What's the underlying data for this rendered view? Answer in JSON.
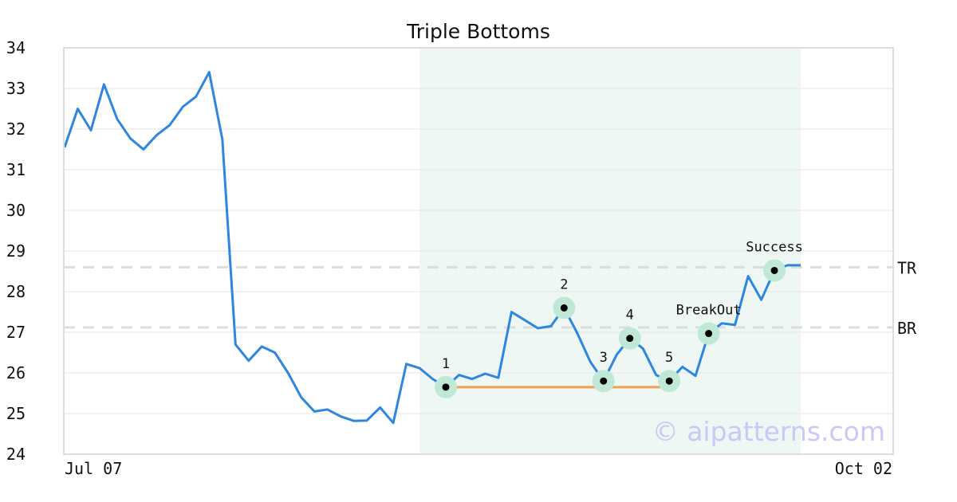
{
  "chart_data": {
    "type": "line",
    "title": "Triple Bottoms",
    "xlabel": "",
    "ylabel": "",
    "ylim": [
      24,
      34
    ],
    "yticks": [
      24,
      25,
      26,
      27,
      28,
      29,
      30,
      31,
      32,
      33,
      34
    ],
    "x_tick_labels": [
      "Jul 07",
      "Oct 02"
    ],
    "grid": true,
    "series": [
      {
        "values": [
          31.55,
          32.5,
          31.97,
          33.1,
          32.25,
          31.77,
          31.5,
          31.85,
          32.1,
          32.55,
          32.8,
          33.4,
          31.75,
          26.7,
          26.3,
          26.65,
          26.5,
          26.0,
          25.4,
          25.05,
          25.1,
          24.93,
          24.82,
          24.83,
          25.15,
          24.77,
          26.22,
          26.12,
          25.85,
          25.65,
          25.95,
          25.85,
          25.98,
          25.88,
          27.5,
          27.3,
          27.1,
          27.15,
          27.6,
          26.98,
          26.27,
          25.8,
          26.45,
          26.85,
          26.6,
          25.95,
          25.8,
          26.15,
          25.93,
          26.97,
          27.22,
          27.18,
          28.38,
          27.8,
          28.52,
          28.65,
          28.65
        ]
      }
    ],
    "levels": [
      {
        "label": "TR",
        "value": 28.6
      },
      {
        "label": "BR",
        "value": 27.12
      }
    ],
    "pattern_region": {
      "from_index": 27,
      "to_index": 56
    },
    "support_line": {
      "from_index": 29,
      "to_index": 46,
      "value": 25.65
    },
    "annotations": [
      {
        "label": "1",
        "index": 29,
        "value": 25.65
      },
      {
        "label": "2",
        "index": 38,
        "value": 27.6
      },
      {
        "label": "3",
        "index": 41,
        "value": 25.8
      },
      {
        "label": "4",
        "index": 43,
        "value": 26.85
      },
      {
        "label": "5",
        "index": 46,
        "value": 25.8
      },
      {
        "label": "BreakOut",
        "index": 49,
        "value": 26.97
      },
      {
        "label": "Success",
        "index": 54,
        "value": 28.52
      }
    ],
    "watermark": "© aipatterns.com",
    "colors": {
      "line": "#2e86de",
      "region": "#eef7f3",
      "support": "#f0a050",
      "marker_halo": "#bfe9d6",
      "marker_dot": "#000000",
      "level_line": "#dddddd",
      "grid": "#e6e6e6",
      "frame": "#dddddd"
    }
  }
}
